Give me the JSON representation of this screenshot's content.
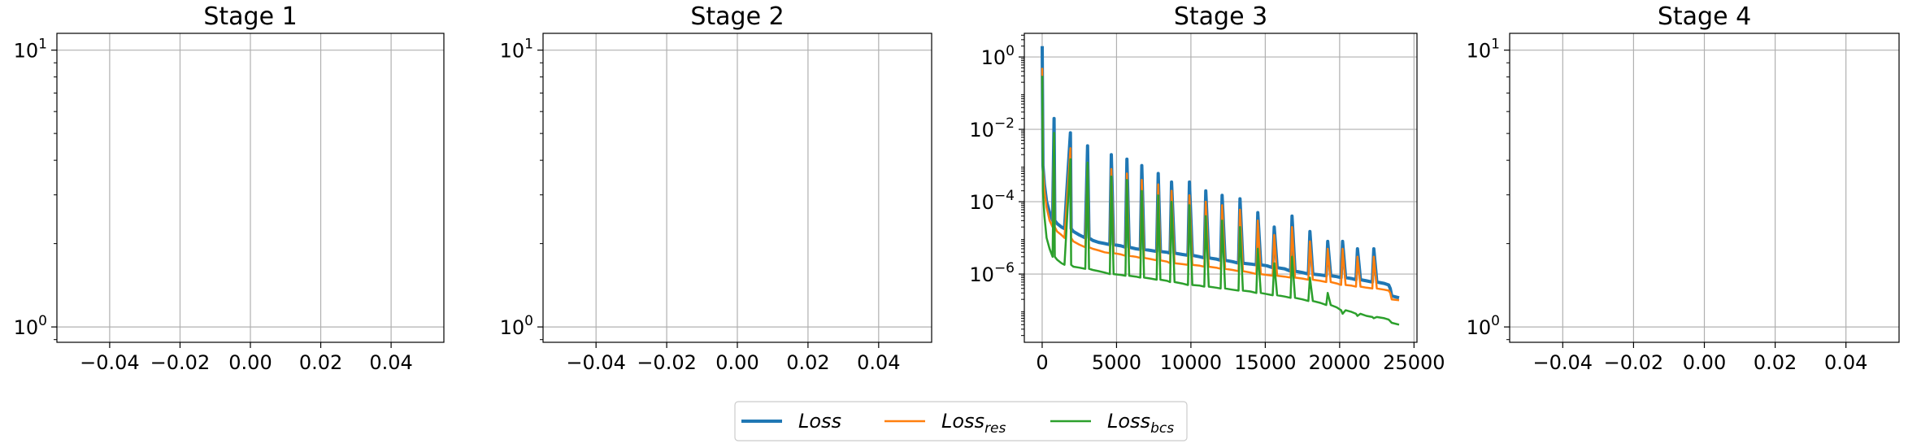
{
  "chart_data": [
    {
      "type": "line",
      "title": "Stage 1",
      "xlabel": "",
      "ylabel": "",
      "y_scale": "log",
      "x_range": [
        -0.055,
        0.055
      ],
      "y_range": [
        0.88,
        11.5
      ],
      "x_tick_values": [
        -0.04,
        -0.02,
        0.0,
        0.02,
        0.04
      ],
      "x_tick_labels": [
        "−0.04",
        "−0.02",
        "0.00",
        "0.02",
        "0.04"
      ],
      "y_tick_values": [
        1,
        10
      ],
      "y_tick_labels": [
        {
          "base": "10",
          "exp": "0"
        },
        {
          "base": "10",
          "exp": "1"
        }
      ],
      "grid": true,
      "series": []
    },
    {
      "type": "line",
      "title": "Stage 2",
      "xlabel": "",
      "ylabel": "",
      "y_scale": "log",
      "x_range": [
        -0.055,
        0.055
      ],
      "y_range": [
        0.88,
        11.5
      ],
      "x_tick_values": [
        -0.04,
        -0.02,
        0.0,
        0.02,
        0.04
      ],
      "x_tick_labels": [
        "−0.04",
        "−0.02",
        "0.00",
        "0.02",
        "0.04"
      ],
      "y_tick_values": [
        1,
        10
      ],
      "y_tick_labels": [
        {
          "base": "10",
          "exp": "0"
        },
        {
          "base": "10",
          "exp": "1"
        }
      ],
      "grid": true,
      "series": []
    },
    {
      "type": "line",
      "title": "Stage 3",
      "xlabel": "",
      "ylabel": "",
      "y_scale": "log",
      "x_range": [
        -1200,
        25200
      ],
      "y_range": [
        1.3e-08,
        4.5
      ],
      "x_tick_values": [
        0,
        5000,
        10000,
        15000,
        20000,
        25000
      ],
      "x_tick_labels": [
        "0",
        "5000",
        "10000",
        "15000",
        "20000",
        "25000"
      ],
      "y_tick_values": [
        1,
        0.01,
        0.0001,
        1e-06
      ],
      "y_tick_labels": [
        {
          "base": "10",
          "exp": "0"
        },
        {
          "base": "10",
          "exp": "−2"
        },
        {
          "base": "10",
          "exp": "−4"
        },
        {
          "base": "10",
          "exp": "−6"
        }
      ],
      "grid": true,
      "series": [
        {
          "key": "loss",
          "color": "#1f77b4",
          "x": [
            0,
            50,
            150,
            300,
            500,
            700,
            800,
            850,
            1000,
            1300,
            1500,
            1900,
            1950,
            2100,
            2500,
            2900,
            3050,
            3150,
            3400,
            3800,
            4200,
            4550,
            4650,
            4800,
            5300,
            5600,
            5700,
            5850,
            6300,
            6600,
            6700,
            6850,
            7300,
            7700,
            7800,
            7950,
            8400,
            8600,
            8700,
            8900,
            9400,
            9800,
            9900,
            10100,
            10600,
            10900,
            11000,
            11200,
            11700,
            12000,
            12100,
            12300,
            12800,
            13200,
            13300,
            13500,
            14000,
            14400,
            14500,
            14700,
            15100,
            15500,
            15600,
            15800,
            16300,
            16700,
            16800,
            17000,
            17500,
            17900,
            18000,
            18200,
            18700,
            19100,
            19200,
            19400,
            19800,
            20100,
            20200,
            20400,
            20800,
            21100,
            21200,
            21400,
            21800,
            22200,
            22300,
            22500,
            23000,
            23300,
            23400,
            23500,
            24000
          ],
          "y": [
            2.0,
            0.001,
            0.0003,
            0.0001,
            5e-05,
            3e-05,
            0.02,
            3e-05,
            2.5e-05,
            2e-05,
            1.8e-05,
            0.008,
            1.8e-05,
            1.5e-05,
            1.2e-05,
            1e-05,
            0.0035,
            1e-05,
            8.5e-06,
            7.5e-06,
            7e-06,
            6.5e-06,
            0.002,
            6.5e-06,
            6e-06,
            5.5e-06,
            0.0015,
            5.5e-06,
            5e-06,
            4.8e-06,
            0.001,
            4.8e-06,
            4.5e-06,
            4.2e-06,
            0.0006,
            4.2e-06,
            4e-06,
            3.8e-06,
            0.00035,
            3.8e-06,
            3.5e-06,
            3.3e-06,
            0.00035,
            3.3e-06,
            3e-06,
            2.8e-06,
            0.0002,
            2.8e-06,
            2.6e-06,
            2.4e-06,
            0.00015,
            2.4e-06,
            2.2e-06,
            2e-06,
            0.00012,
            2e-06,
            1.9e-06,
            1.8e-06,
            5e-05,
            1.8e-06,
            1.7e-06,
            1.5e-06,
            2e-05,
            1.5e-06,
            1.4e-06,
            1.2e-06,
            4e-05,
            1.2e-06,
            1.1e-06,
            1e-06,
            1.5e-05,
            1e-06,
            9.5e-07,
            9e-07,
            8e-06,
            9e-07,
            8.5e-07,
            8e-07,
            8e-06,
            8e-07,
            7.5e-07,
            7e-07,
            5e-06,
            7e-07,
            6.5e-07,
            6e-07,
            5e-06,
            6e-07,
            5.5e-07,
            5e-07,
            4e-07,
            2.5e-07,
            2.2e-07
          ]
        },
        {
          "key": "loss_res",
          "color": "#ff7f0e",
          "x": [
            0,
            50,
            150,
            300,
            500,
            700,
            800,
            850,
            1000,
            1300,
            1500,
            1900,
            1950,
            2100,
            2500,
            2900,
            3050,
            3150,
            3400,
            3800,
            4200,
            4550,
            4650,
            4800,
            5300,
            5600,
            5700,
            5850,
            6300,
            6600,
            6700,
            6850,
            7300,
            7700,
            7800,
            7950,
            8400,
            8600,
            8700,
            8900,
            9400,
            9800,
            9900,
            10100,
            10600,
            10900,
            11000,
            11200,
            11700,
            12000,
            12100,
            12300,
            12800,
            13200,
            13300,
            13500,
            14000,
            14400,
            14500,
            14700,
            15100,
            15500,
            15600,
            15800,
            16300,
            16700,
            16800,
            17000,
            17500,
            17900,
            18000,
            18200,
            18700,
            19100,
            19200,
            19400,
            19800,
            20100,
            20200,
            20400,
            20800,
            21100,
            21200,
            21400,
            21800,
            22200,
            22300,
            22500,
            23000,
            23300,
            23400,
            23500,
            24000
          ],
          "y": [
            0.5,
            0.0008,
            0.0002,
            7e-05,
            3e-05,
            2e-05,
            0.005,
            2e-05,
            1.5e-05,
            1.2e-05,
            1e-05,
            0.003,
            1e-05,
            8e-06,
            6.5e-06,
            5.5e-06,
            0.0012,
            5.5e-06,
            5e-06,
            4.5e-06,
            4e-06,
            3.8e-06,
            0.0008,
            3.8e-06,
            3.5e-06,
            3.2e-06,
            0.0006,
            3.2e-06,
            3e-06,
            2.8e-06,
            0.0004,
            2.8e-06,
            2.6e-06,
            2.4e-06,
            0.0003,
            2.4e-06,
            2.2e-06,
            2e-06,
            0.0002,
            2e-06,
            1.9e-06,
            1.8e-06,
            0.00015,
            1.8e-06,
            1.7e-06,
            1.6e-06,
            0.0001,
            1.6e-06,
            1.5e-06,
            1.4e-06,
            8e-05,
            1.4e-06,
            1.3e-06,
            1.2e-06,
            6e-05,
            1.2e-06,
            1.1e-06,
            1e-06,
            3e-05,
            1e-06,
            9.5e-07,
            9e-07,
            1.2e-05,
            9e-07,
            8.5e-07,
            8e-07,
            2e-05,
            8e-07,
            7.5e-07,
            7e-07,
            8e-06,
            7e-07,
            6.5e-07,
            6e-07,
            5e-06,
            6e-07,
            5.5e-07,
            5e-07,
            5e-06,
            5e-07,
            4.8e-07,
            4.5e-07,
            3e-06,
            4.5e-07,
            4.2e-07,
            4e-07,
            3e-06,
            4e-07,
            3.7e-07,
            3.5e-07,
            3e-07,
            2e-07,
            1.9e-07
          ]
        },
        {
          "key": "loss_bcs",
          "color": "#2ca02c",
          "x": [
            0,
            50,
            150,
            300,
            500,
            700,
            800,
            850,
            1000,
            1300,
            1500,
            1900,
            1950,
            2100,
            2500,
            2900,
            3050,
            3150,
            3400,
            3800,
            4200,
            4550,
            4650,
            4800,
            5300,
            5600,
            5700,
            5850,
            6300,
            6600,
            6700,
            6850,
            7300,
            7700,
            7800,
            7950,
            8400,
            8600,
            8700,
            8900,
            9400,
            9800,
            9900,
            10100,
            10600,
            10900,
            11000,
            11200,
            11700,
            12000,
            12100,
            12300,
            12800,
            13200,
            13300,
            13500,
            14000,
            14400,
            14500,
            14700,
            15100,
            15500,
            15600,
            15800,
            16300,
            16700,
            16800,
            17000,
            17500,
            17900,
            18000,
            18200,
            18700,
            19100,
            19200,
            19400,
            19800,
            20100,
            20200,
            20400,
            20800,
            21100,
            21200,
            21400,
            21800,
            22200,
            22300,
            22500,
            23000,
            23300,
            23400,
            23500,
            24000
          ],
          "y": [
            0.3,
            0.0002,
            4e-05,
            1e-05,
            5e-06,
            3e-06,
            0.008,
            3e-06,
            2.5e-06,
            2e-06,
            1.8e-06,
            0.0015,
            1.8e-06,
            1.6e-06,
            1.5e-06,
            1.4e-06,
            0.0012,
            1.4e-06,
            1.3e-06,
            1.2e-06,
            1.1e-06,
            1e-06,
            0.0005,
            1e-06,
            9.5e-07,
            9e-07,
            0.0004,
            9e-07,
            8.5e-07,
            8e-07,
            0.0002,
            8e-07,
            7.5e-07,
            7e-07,
            0.00015,
            7e-07,
            6.5e-07,
            6e-07,
            0.0001,
            6e-07,
            5.5e-07,
            5e-07,
            8e-05,
            5e-07,
            4.8e-07,
            4.5e-07,
            4e-05,
            4.5e-07,
            4.2e-07,
            4e-07,
            3e-05,
            4e-07,
            3.7e-07,
            3.5e-07,
            2e-05,
            3.5e-07,
            3.3e-07,
            3e-07,
            5e-06,
            3e-07,
            2.8e-07,
            2.6e-07,
            2e-06,
            2.6e-07,
            2.4e-07,
            2.2e-07,
            3e-06,
            2.2e-07,
            2e-07,
            1.8e-07,
            8e-07,
            1.8e-07,
            1.6e-07,
            1.4e-07,
            3e-07,
            1.4e-07,
            1.2e-07,
            1e-07,
            8e-08,
            1e-07,
            9e-08,
            8e-08,
            7e-08,
            8e-08,
            7e-08,
            6.5e-08,
            6e-08,
            6.5e-08,
            6e-08,
            5.5e-08,
            5e-08,
            4.5e-08,
            4e-08
          ]
        }
      ]
    },
    {
      "type": "line",
      "title": "Stage 4",
      "xlabel": "",
      "ylabel": "",
      "y_scale": "log",
      "x_range": [
        -0.055,
        0.055
      ],
      "y_range": [
        0.88,
        11.5
      ],
      "x_tick_values": [
        -0.04,
        -0.02,
        0.0,
        0.02,
        0.04
      ],
      "x_tick_labels": [
        "−0.04",
        "−0.02",
        "0.00",
        "0.02",
        "0.04"
      ],
      "y_tick_values": [
        1,
        10
      ],
      "y_tick_labels": [
        {
          "base": "10",
          "exp": "0"
        },
        {
          "base": "10",
          "exp": "1"
        }
      ],
      "grid": true,
      "series": []
    }
  ],
  "legend": {
    "placement": "bottom-center",
    "entries": [
      {
        "base": "Loss",
        "sub": "",
        "color": "#1f77b4",
        "linewidth": 4
      },
      {
        "base": "Loss",
        "sub": "res",
        "color": "#ff7f0e",
        "linewidth": 2.5
      },
      {
        "base": "Loss",
        "sub": "bcs",
        "color": "#2ca02c",
        "linewidth": 2.5
      }
    ]
  }
}
